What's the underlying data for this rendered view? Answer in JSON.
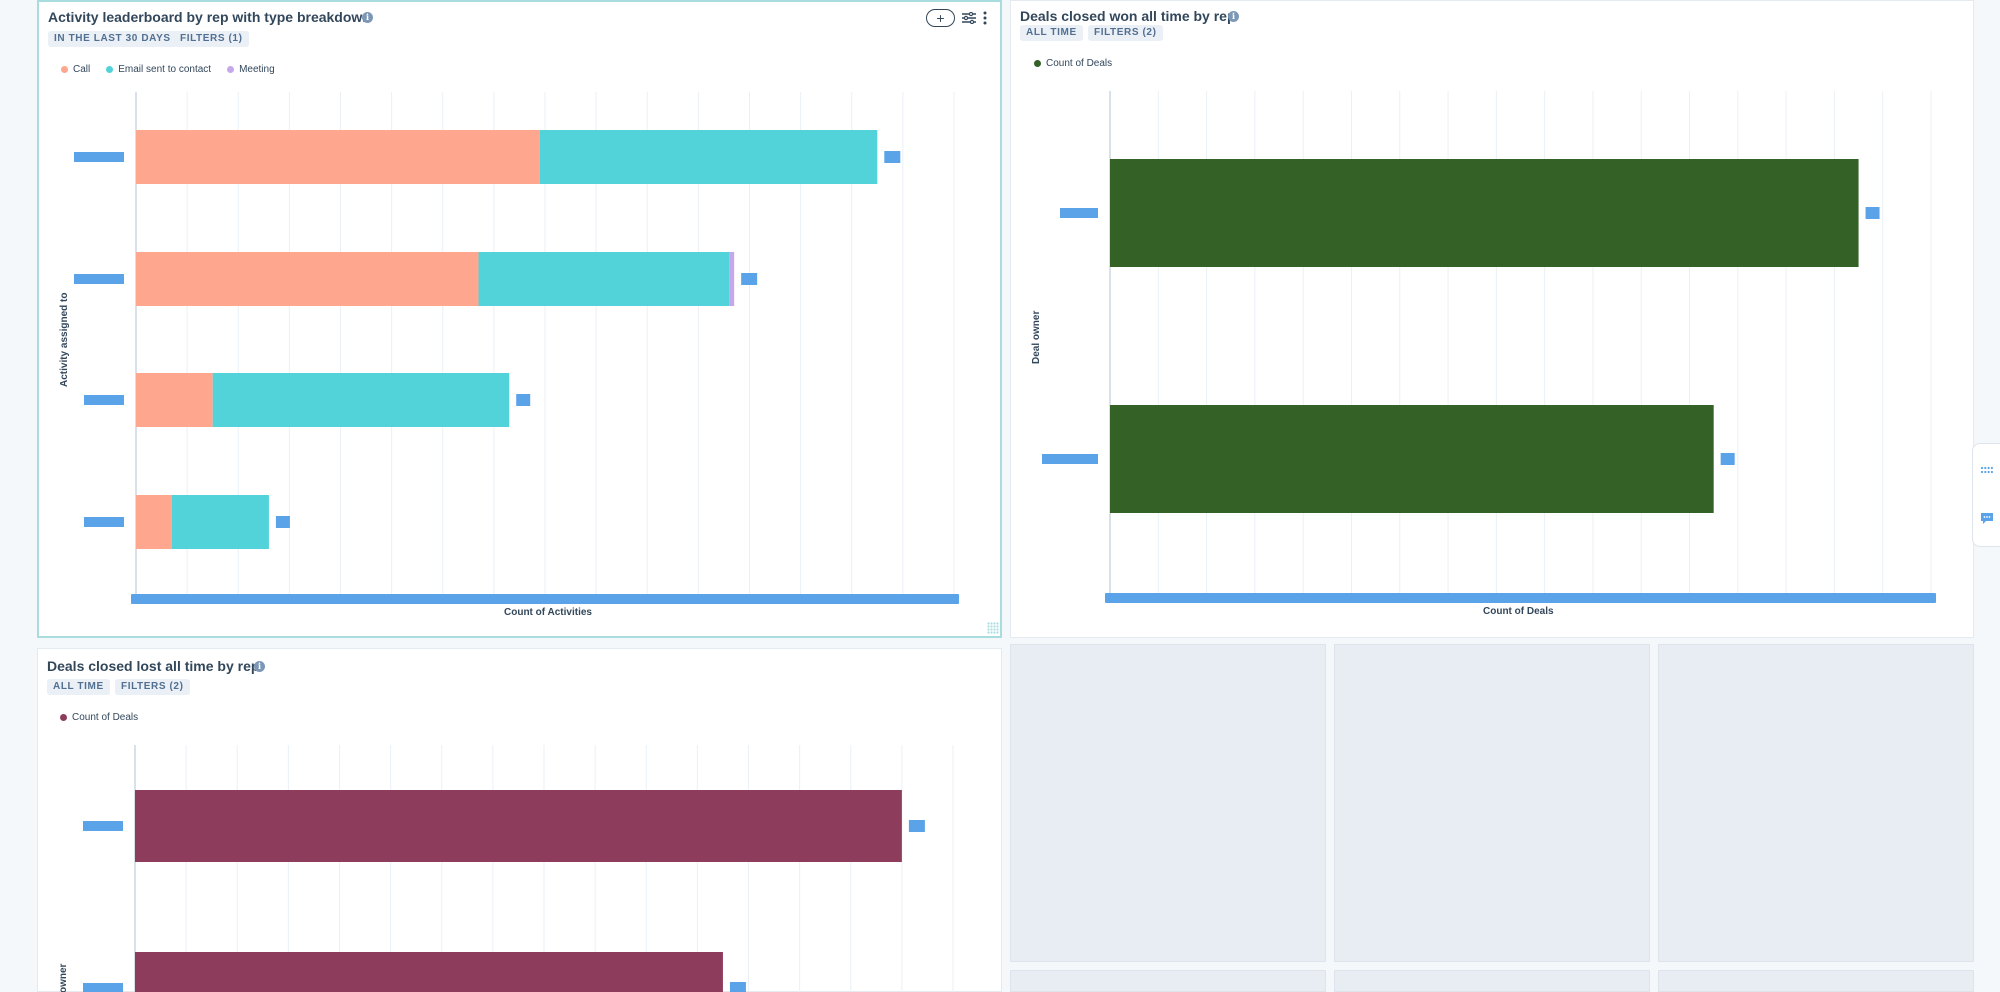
{
  "colors": {
    "call": "#fea68e",
    "email": "#51d3d9",
    "meeting": "#c5a8ec",
    "won": "#336126",
    "lost": "#8e3c5c",
    "redacted_label": "#5aa3e8",
    "grid": "#eaf0f6",
    "axis": "#cbd6e2"
  },
  "cards": {
    "activity": {
      "title": "Activity leaderboard by rep with type breakdown",
      "pills": [
        "IN THE LAST 30 DAYS",
        "FILTERS (1)"
      ],
      "add_icon": "+",
      "filter_icon": "sliders-icon",
      "more_icon": "vertical-dots-icon",
      "legend": [
        {
          "label": "Call",
          "color": "#fea68e"
        },
        {
          "label": "Email sent to contact",
          "color": "#51d3d9"
        },
        {
          "label": "Meeting",
          "color": "#c5a8ec"
        }
      ],
      "y_axis_title": "Activity assigned to",
      "x_axis_title": "Count of Activities"
    },
    "won": {
      "title": "Deals closed won all time by rep",
      "pills": [
        "ALL TIME",
        "FILTERS (2)"
      ],
      "legend": [
        {
          "label": "Count of Deals",
          "color": "#336126"
        }
      ],
      "y_axis_title": "Deal owner",
      "x_axis_title": "Count of Deals"
    },
    "lost": {
      "title": "Deals closed lost all time by rep",
      "pills": [
        "ALL TIME",
        "FILTERS (2)"
      ],
      "legend": [
        {
          "label": "Count of Deals",
          "color": "#8e3c5c"
        }
      ],
      "y_axis_title": "owner"
    }
  },
  "chart_data": [
    {
      "type": "bar",
      "orientation": "horizontal",
      "stacked": true,
      "title": "Activity leaderboard by rep with type breakdown",
      "xlabel": "Count of Activities",
      "ylabel": "Activity assigned to",
      "xlim": [
        0,
        160
      ],
      "categories": [
        "",
        "",
        "",
        ""
      ],
      "series": [
        {
          "name": "Call",
          "color": "#fea68e",
          "values": [
            79,
            67,
            15,
            7
          ]
        },
        {
          "name": "Email sent to contact",
          "color": "#51d3d9",
          "values": [
            66,
            49,
            58,
            19
          ]
        },
        {
          "name": "Meeting",
          "color": "#c5a8ec",
          "values": [
            0,
            1,
            0,
            0
          ]
        }
      ],
      "grid": true,
      "legend": "top-left"
    },
    {
      "type": "bar",
      "orientation": "horizontal",
      "title": "Deals closed won all time by rep",
      "xlabel": "Count of Deals",
      "ylabel": "Deal owner",
      "xlim": [
        0,
        17
      ],
      "categories": [
        "",
        ""
      ],
      "series": [
        {
          "name": "Count of Deals",
          "color": "#336126",
          "values": [
            15.5,
            12.5
          ]
        }
      ],
      "grid": true,
      "legend": "top-left"
    },
    {
      "type": "bar",
      "orientation": "horizontal",
      "title": "Deals closed lost all time by rep",
      "xlabel": "",
      "ylabel": "owner",
      "xlim": [
        0,
        16
      ],
      "categories": [
        "",
        ""
      ],
      "series": [
        {
          "name": "Count of Deals",
          "color": "#8e3c5c",
          "values": [
            15,
            11.5
          ]
        }
      ],
      "grid": true,
      "legend": "top-left"
    }
  ]
}
